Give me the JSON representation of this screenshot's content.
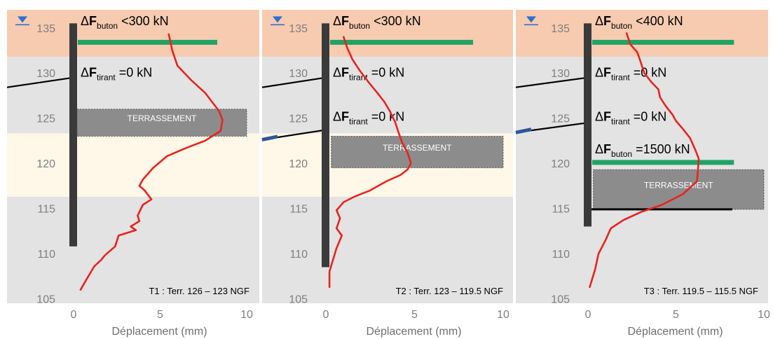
{
  "chart_data": [
    {
      "type": "line",
      "phase_caption": "T1 : Terr. 126 – 123 NGF",
      "xlabel": "Déplacement (mm)",
      "xticks": [
        0,
        5,
        10
      ],
      "xlim": [
        0,
        10
      ],
      "yticks": [
        105,
        110,
        115,
        120,
        125,
        130,
        135
      ],
      "ylim": [
        104.5,
        137
      ],
      "soil_layers": [
        {
          "from": 137,
          "to": 131.8,
          "color": "#f7cbb0"
        },
        {
          "from": 131.8,
          "to": 123.3,
          "color": "#e3e3e3"
        },
        {
          "from": 123.3,
          "to": 116.3,
          "color": "#fff7e8"
        },
        {
          "from": 116.3,
          "to": 104.5,
          "color": "#e3e3e3"
        }
      ],
      "water_level": 135.5,
      "wall": {
        "top": 135.5,
        "bottom": 110.8
      },
      "excavation": {
        "label": "TERRASSEMENT",
        "top": 126,
        "bottom": 123,
        "x0": 0.2,
        "x1": 10
      },
      "elements": [
        {
          "kind": "strut",
          "elev": 133.4,
          "color": "#21a366"
        },
        {
          "kind": "anchor",
          "elev": 129.5,
          "color": "#000000"
        }
      ],
      "annotations": [
        {
          "prefix": "ΔF",
          "sub": "buton",
          "text": " <300 kN",
          "elev": 135.3
        },
        {
          "prefix": "ΔF",
          "sub": "tirant",
          "text": " =0 kN",
          "elev": 129.6
        }
      ],
      "series": [
        {
          "color": "#e8231f",
          "x": [
            5.5,
            5.7,
            6.0,
            6.4,
            6.8,
            7.2,
            7.6,
            8.0,
            8.4,
            8.6,
            8.5,
            7.6,
            6.5,
            5.4,
            4.6,
            4.0,
            3.8,
            4.1,
            4.5,
            4.0,
            3.7,
            3.8,
            3.3,
            3.6,
            2.6,
            2.4,
            1.8,
            1.6,
            1.2,
            0.7,
            0.4
          ],
          "y": [
            134.3,
            132.5,
            130.8,
            130.0,
            129.2,
            128.5,
            127.8,
            126.8,
            125.8,
            124.8,
            123.6,
            122.5,
            121.7,
            120.8,
            119.5,
            118.2,
            117.5,
            117.0,
            116.0,
            115.4,
            114.2,
            113.6,
            113.0,
            112.6,
            112.0,
            110.8,
            109.8,
            109.3,
            108.6,
            107.0,
            106.0
          ]
        }
      ]
    },
    {
      "type": "line",
      "phase_caption": "T2 : Terr. 123 – 119.5 NGF",
      "xlabel": "Déplacement (mm)",
      "xticks": [
        0,
        5,
        10
      ],
      "xlim": [
        0,
        10
      ],
      "yticks": [
        105,
        110,
        115,
        120,
        125,
        130,
        135
      ],
      "ylim": [
        104.5,
        137
      ],
      "soil_layers": [
        {
          "from": 137,
          "to": 131.8,
          "color": "#f7cbb0"
        },
        {
          "from": 131.8,
          "to": 123.3,
          "color": "#e3e3e3"
        },
        {
          "from": 123.3,
          "to": 116.3,
          "color": "#fff7e8"
        },
        {
          "from": 116.3,
          "to": 104.5,
          "color": "#e3e3e3"
        }
      ],
      "water_level": 135.5,
      "wall": {
        "top": 135.5,
        "bottom": 108.5
      },
      "excavation": {
        "label": "TERRASSEMENT",
        "top": 123,
        "bottom": 119.5,
        "x0": 0.3,
        "x1": 10
      },
      "elements": [
        {
          "kind": "strut",
          "elev": 133.4,
          "color": "#21a366"
        },
        {
          "kind": "anchor",
          "elev": 129.5,
          "color": "#000000"
        },
        {
          "kind": "anchor",
          "elev": 123.7,
          "color": "#000000",
          "grout_color": "#2f5597"
        }
      ],
      "annotations": [
        {
          "prefix": "ΔF",
          "sub": "buton",
          "text": " <300 kN",
          "elev": 135.3
        },
        {
          "prefix": "ΔF",
          "sub": "tirant",
          "text": " =0 kN",
          "elev": 129.6
        },
        {
          "prefix": "ΔF",
          "sub": "tirant",
          "text": " =0 kN",
          "elev": 124.7
        }
      ],
      "series": [
        {
          "color": "#e8231f",
          "x": [
            1.0,
            1.2,
            1.5,
            1.9,
            2.4,
            2.9,
            3.3,
            3.6,
            3.9,
            4.1,
            4.3,
            4.6,
            4.8,
            4.6,
            4.2,
            3.4,
            2.5,
            1.6,
            1.0,
            0.6,
            0.8,
            0.6,
            0.9,
            0.6,
            0.4,
            0.2,
            0.2
          ],
          "y": [
            134.0,
            132.8,
            131.5,
            130.3,
            129.0,
            127.8,
            126.8,
            125.8,
            124.6,
            123.4,
            122.3,
            121.2,
            120.0,
            119.3,
            118.7,
            118.0,
            117.0,
            116.3,
            115.7,
            114.8,
            113.9,
            112.8,
            112.0,
            110.6,
            109.3,
            108.0,
            106.3
          ]
        }
      ]
    },
    {
      "type": "line",
      "phase_caption": "T3 : Terr. 119.5 – 115.5 NGF",
      "xlabel": "Déplacement (mm)",
      "xticks": [
        0,
        5,
        10
      ],
      "xlim": [
        0,
        10
      ],
      "yticks": [
        105,
        110,
        115,
        120,
        125,
        130,
        135
      ],
      "ylim": [
        104.5,
        137
      ],
      "soil_layers": [
        {
          "from": 137,
          "to": 131.8,
          "color": "#f7cbb0"
        },
        {
          "from": 131.8,
          "to": 104.5,
          "color": "#e3e3e3"
        }
      ],
      "water_level": 135.5,
      "wall": {
        "top": 135.5,
        "bottom": 113.0
      },
      "excavation": {
        "label": "TERRASSEMENT",
        "top": 119.3,
        "bottom": 114.9,
        "x0": 0.3,
        "x1": 10
      },
      "elements": [
        {
          "kind": "strut",
          "elev": 133.4,
          "color": "#21a366"
        },
        {
          "kind": "anchor",
          "elev": 129.5,
          "color": "#000000"
        },
        {
          "kind": "anchor",
          "elev": 124.5,
          "color": "#000000",
          "grout_color": "#2f5597"
        },
        {
          "kind": "strut",
          "elev": 120.1,
          "color": "#21a366"
        },
        {
          "kind": "raft",
          "elev": 114.9,
          "color": "#000000"
        }
      ],
      "annotations": [
        {
          "prefix": "ΔF",
          "sub": "buton",
          "text": " <400 kN",
          "elev": 135.3
        },
        {
          "prefix": "ΔF",
          "sub": "tirant",
          "text": " =0 kN",
          "elev": 129.6
        },
        {
          "prefix": "ΔF",
          "sub": "tirant",
          "text": " =0 kN",
          "elev": 124.7
        },
        {
          "prefix": "ΔF",
          "sub": "buton",
          "text": " =1500 kN",
          "elev": 121.1
        }
      ],
      "series": [
        {
          "color": "#e8231f",
          "x": [
            2.2,
            2.4,
            2.8,
            3.0,
            3.2,
            3.6,
            4.0,
            4.1,
            4.4,
            4.8,
            5.0,
            5.4,
            5.8,
            6.1,
            6.3,
            6.2,
            5.4,
            4.2,
            3.0,
            2.0,
            1.3,
            1.0,
            0.6,
            0.4,
            0.1
          ],
          "y": [
            134.4,
            133.2,
            132.3,
            131.2,
            130.0,
            129.0,
            128.2,
            127.3,
            126.4,
            125.4,
            124.7,
            123.8,
            122.8,
            121.5,
            120.5,
            118.0,
            116.6,
            115.4,
            114.6,
            113.7,
            112.8,
            111.5,
            110.0,
            108.2,
            106.3
          ]
        }
      ]
    }
  ]
}
